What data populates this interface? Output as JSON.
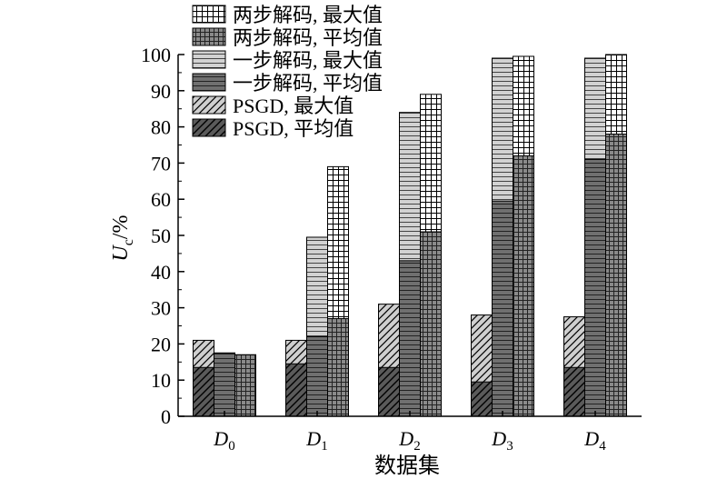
{
  "chart_data": {
    "type": "bar",
    "stacked": true,
    "groups": [
      "PSGD",
      "一步解码",
      "两步解码"
    ],
    "categories": [
      {
        "main": "D",
        "sub": "0"
      },
      {
        "main": "D",
        "sub": "1"
      },
      {
        "main": "D",
        "sub": "2"
      },
      {
        "main": "D",
        "sub": "3"
      },
      {
        "main": "D",
        "sub": "4"
      }
    ],
    "series": [
      {
        "name": "两步解码, 最大值",
        "group": "两步解码",
        "kind": "max",
        "pattern": "grid-light",
        "values": [
          17,
          69,
          89,
          99.5,
          100
        ]
      },
      {
        "name": "两步解码, 平均值",
        "group": "两步解码",
        "kind": "avg",
        "pattern": "grid-dark",
        "values": [
          17,
          27,
          51,
          72,
          78
        ]
      },
      {
        "name": "一步解码, 最大值",
        "group": "一步解码",
        "kind": "max",
        "pattern": "hstripe-light",
        "values": [
          17.5,
          49.5,
          84,
          99,
          99
        ]
      },
      {
        "name": "一步解码, 平均值",
        "group": "一步解码",
        "kind": "avg",
        "pattern": "hstripe-dark",
        "values": [
          17.5,
          22,
          43,
          59.5,
          71
        ]
      },
      {
        "name": "PSGD, 最大值",
        "group": "PSGD",
        "kind": "max",
        "pattern": "hatch-light",
        "values": [
          21,
          21,
          31,
          28,
          27.5
        ]
      },
      {
        "name": "PSGD, 平均值",
        "group": "PSGD",
        "kind": "avg",
        "pattern": "hatch-dark",
        "values": [
          13.5,
          14.5,
          13.5,
          9.5,
          13.5
        ]
      }
    ],
    "yaxis": {
      "label_main": "U",
      "label_sub": "c",
      "label_suffix": "/%",
      "min": 0,
      "max": 100,
      "ticks": [
        "0",
        "10",
        "20",
        "30",
        "40",
        "50",
        "60",
        "70",
        "80",
        "90",
        "100"
      ]
    },
    "xlabel": "数据集",
    "legend": {
      "placement": "top-left",
      "order": [
        "两步解码, 最大值",
        "两步解码, 平均值",
        "一步解码, 最大值",
        "一步解码, 平均值",
        "PSGD, 最大值",
        "PSGD, 平均值"
      ]
    },
    "grid": false
  },
  "colors": {
    "light_fill": "#cfcfcf",
    "dark_fill": "#6f6f6f",
    "hatch_dark_bg": "#5a5a5a",
    "stroke": "#000000",
    "background": "#ffffff"
  }
}
